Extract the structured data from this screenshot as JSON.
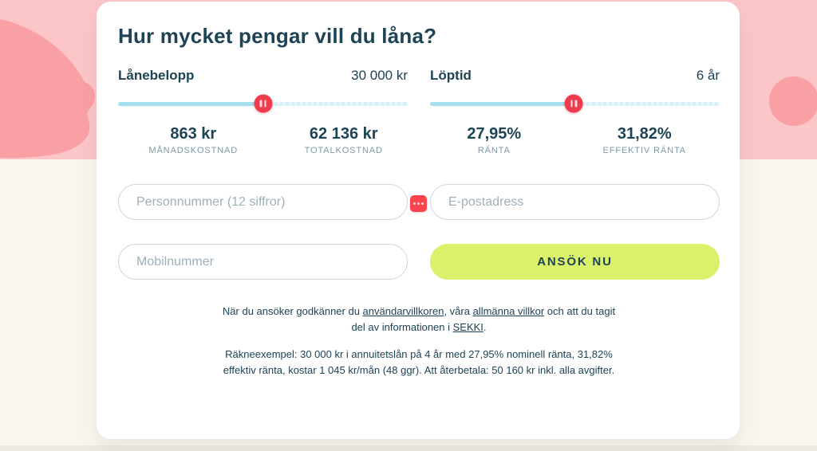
{
  "page": {
    "title": "Hur mycket pengar vill du låna?"
  },
  "sliders": {
    "loan_amount": {
      "label": "Lånebelopp",
      "value": "30 000 kr",
      "percent": 50
    },
    "term": {
      "label": "Löptid",
      "value": "6 år",
      "percent": 49.7
    }
  },
  "stats": [
    {
      "value": "863 kr",
      "label": "MÅNADSKOSTNAD"
    },
    {
      "value": "62 136 kr",
      "label": "TOTALKOSTNAD"
    },
    {
      "value": "27,95%",
      "label": "RÄNTA"
    },
    {
      "value": "31,82%",
      "label": "EFFEKTIV RÄNTA"
    }
  ],
  "form": {
    "personnummer_placeholder": "Personnummer (12 siffror)",
    "email_placeholder": "E-postadress",
    "mobile_placeholder": "Mobilnummer",
    "submit_label": "ANSÖK NU"
  },
  "legal": {
    "consent_prefix": "När du ansöker godkänner du ",
    "link_terms": "användarvillkoren",
    "consent_mid1": ", våra ",
    "link_conditions": "allmänna villkor",
    "consent_mid2": " och att du tagit del av informationen i ",
    "link_sekki": "SEKKI",
    "consent_suffix": ".",
    "example": "Räkneexempel: 30 000 kr i annuitetslån på 4 år med 27,95% nominell ränta, 31,82% effektiv ränta, kostar 1 045 kr/mån (48 ggr). Att återbetala: 50 160 kr inkl. alla avgifter."
  },
  "colors": {
    "navy_text": "#1d4355",
    "lime_button": "#dcf16b",
    "slider_handle_red": "#ee3b4e",
    "autofill_red": "#f9444d",
    "track_fill_blue": "#a6dfee",
    "track_rest_blue": "#dff2f9",
    "pink_band": "#fcc6c8",
    "pink_blob": "#f9a0a5",
    "cream_background": "#f8f6ef",
    "stat_label_gray": "#7f98a6",
    "input_border": "#ccd8de"
  }
}
